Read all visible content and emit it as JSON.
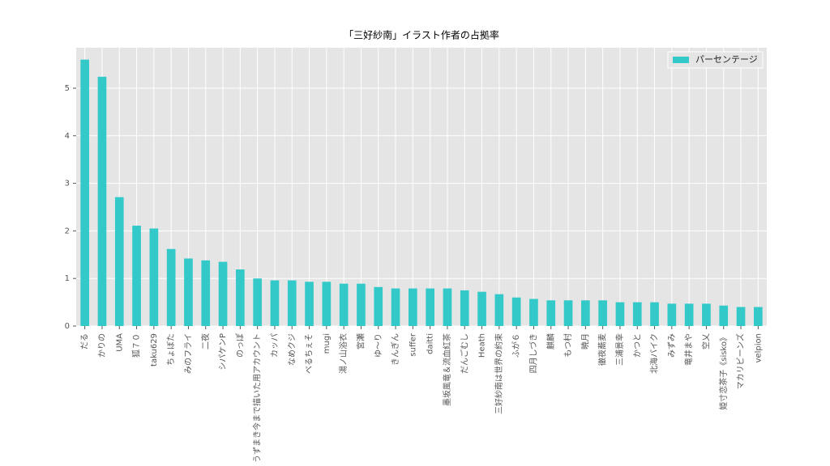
{
  "chart_data": {
    "type": "bar",
    "title": "「三好紗南」イラスト作者の占拠率",
    "categories": [
      "だる",
      "かりの",
      "UMA",
      "狐７０",
      "taku629",
      "ちょぼた",
      "みのフライ",
      "二夜",
      "シパケンP",
      "のっぽ",
      "うずまき今まで描いた用アカウント",
      "カッパ",
      "なめクジ",
      "べるちぇそ",
      "mugi",
      "湯ノ山浴衣",
      "宮瀬",
      "ゆ〜り",
      "きんぎん",
      "suffer",
      "daitti",
      "墨坂風竜＆流血紅茶",
      "だんごむし",
      "Heath",
      "三好紗南は世界の約束",
      "ふが６",
      "四月しづき",
      "麒麟",
      "もつ村",
      "暁月",
      "徹夜蕎麦",
      "三浦景幸",
      "かつと",
      "北海バイク",
      "みずみ",
      "竜井まや",
      "空乂",
      "姫寸恋茶子《sisko》",
      "マカリビーンズ",
      "velpion"
    ],
    "series": [
      {
        "name": "パーセンテージ",
        "color": "#33c9c9",
        "values": [
          5.6,
          5.24,
          2.71,
          2.11,
          2.05,
          1.62,
          1.42,
          1.38,
          1.35,
          1.19,
          1.0,
          0.96,
          0.96,
          0.93,
          0.93,
          0.89,
          0.89,
          0.82,
          0.79,
          0.79,
          0.79,
          0.79,
          0.75,
          0.72,
          0.67,
          0.6,
          0.57,
          0.54,
          0.54,
          0.54,
          0.54,
          0.5,
          0.5,
          0.5,
          0.47,
          0.47,
          0.47,
          0.43,
          0.4,
          0.4
        ]
      }
    ],
    "ylim": [
      0,
      5.85
    ],
    "yticks": [
      0,
      1,
      2,
      3,
      4,
      5
    ],
    "grid": true,
    "legend": "upper right"
  }
}
